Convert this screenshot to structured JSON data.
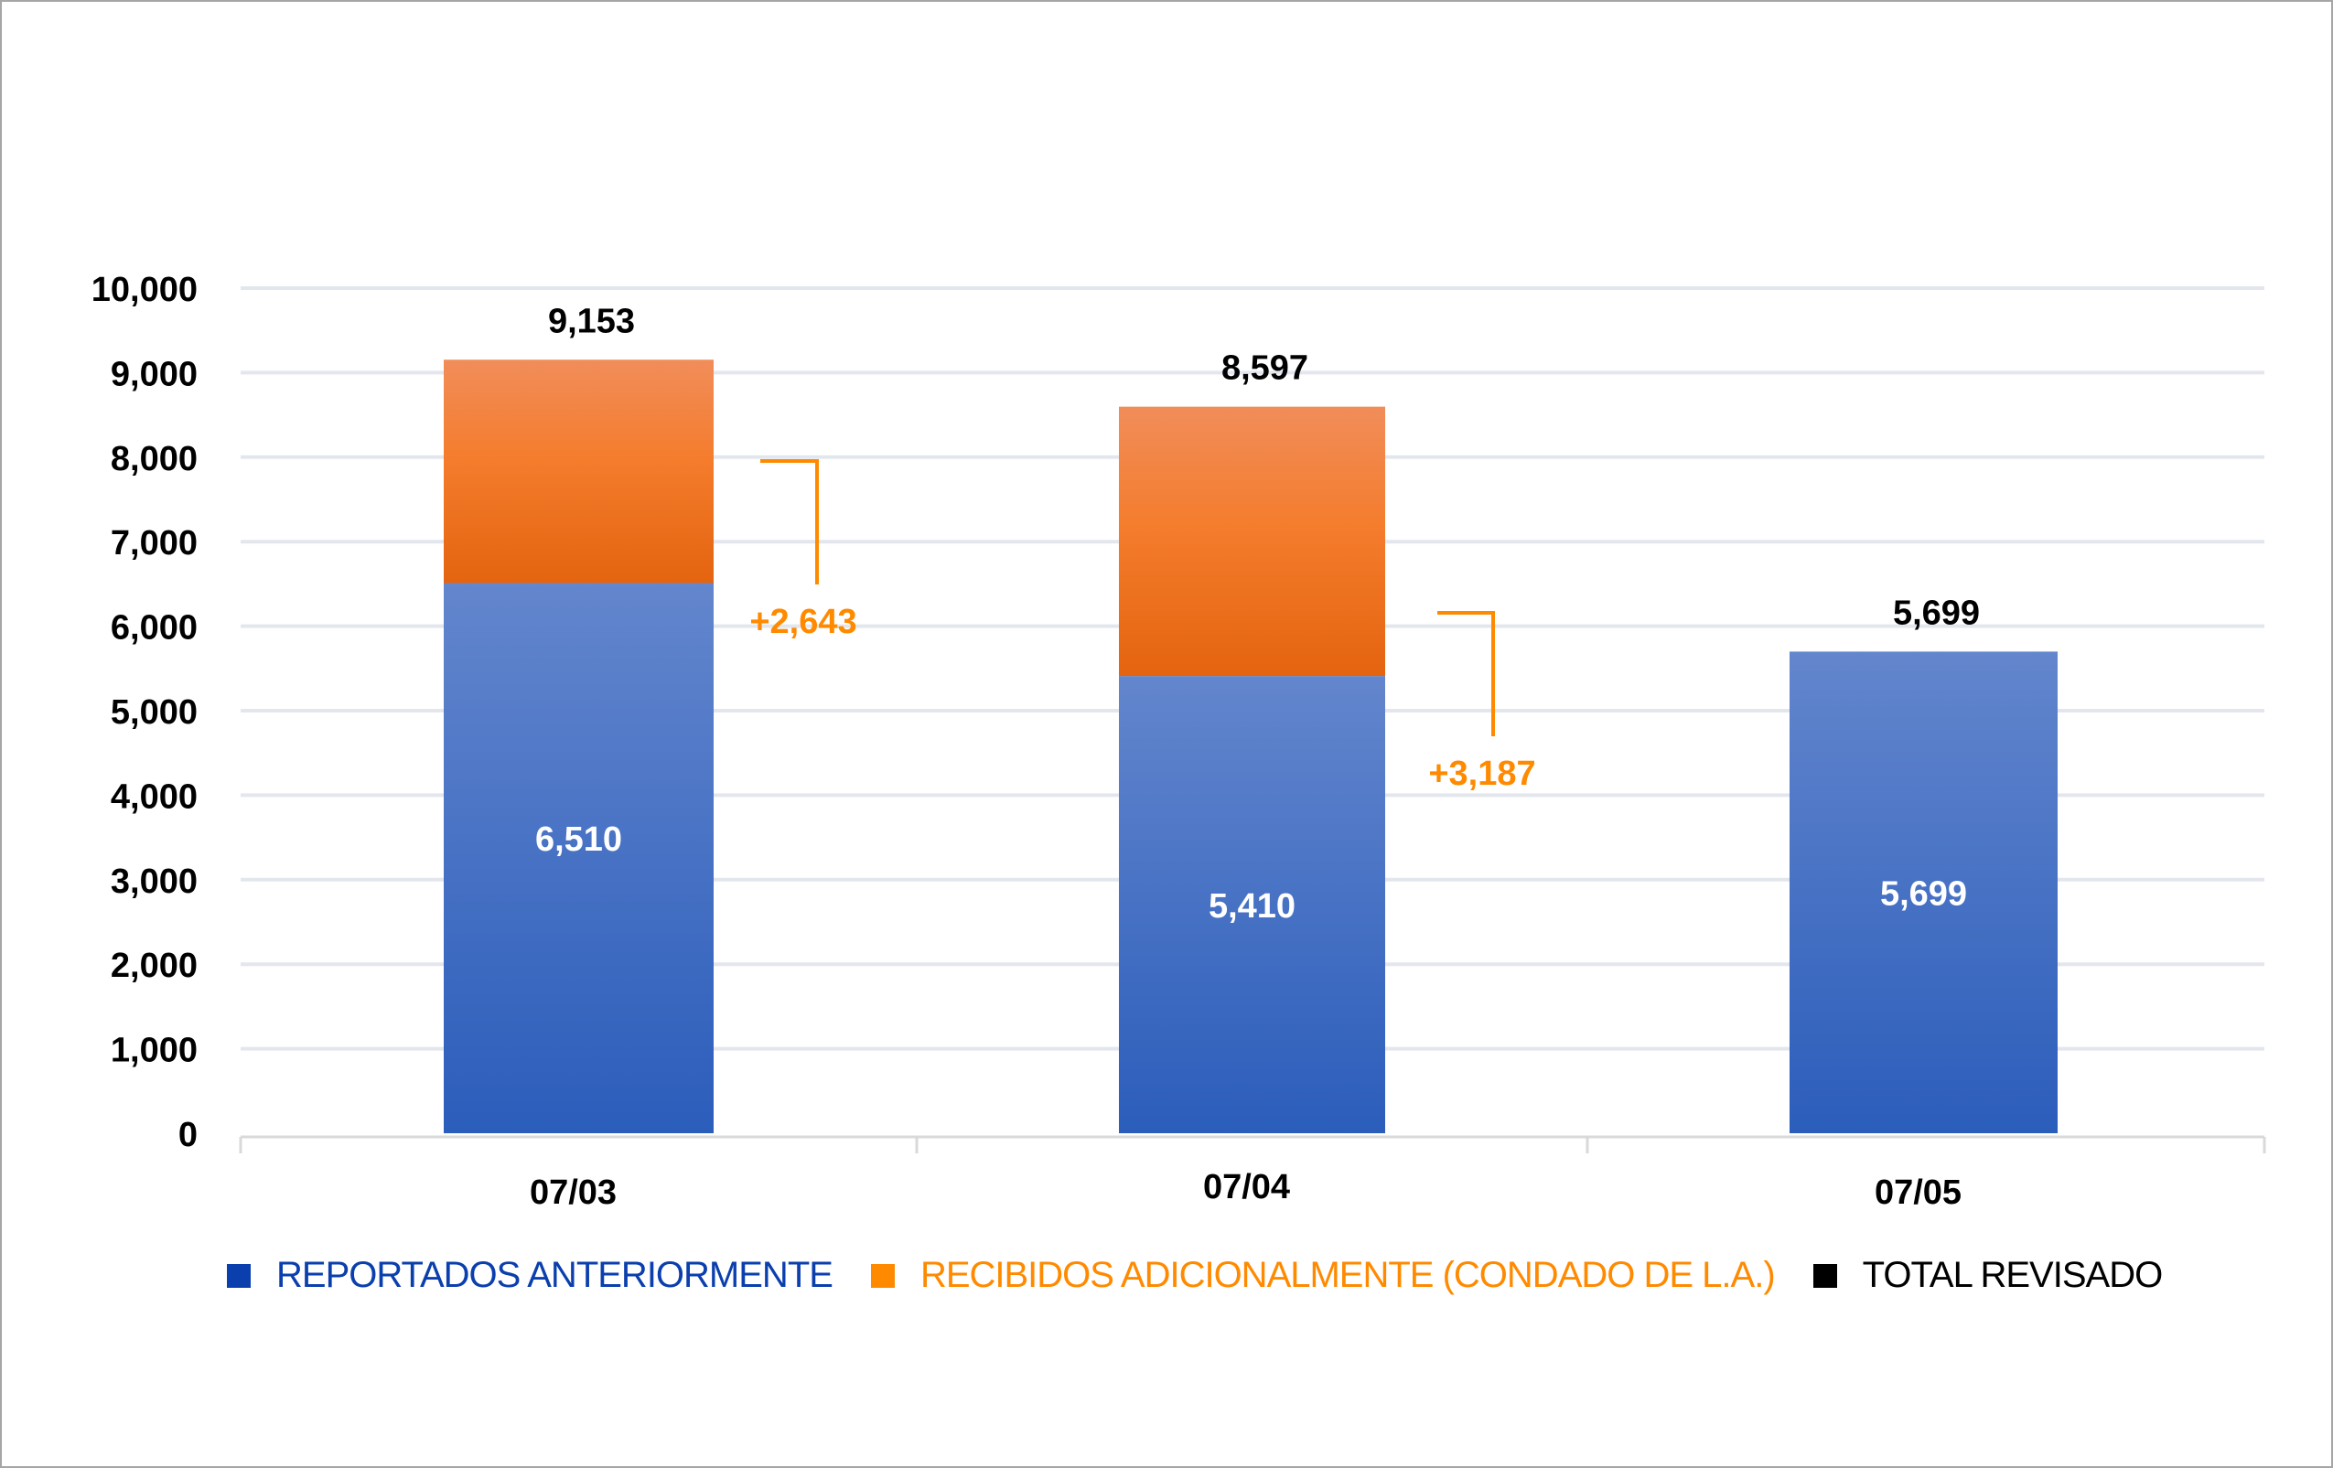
{
  "chart_data": {
    "type": "bar",
    "stacked": true,
    "categories": [
      "07/03",
      "07/04",
      "07/05"
    ],
    "series": [
      {
        "name": "REPORTADOS ANTERIORMENTE",
        "values": [
          6510,
          5410,
          5699
        ],
        "labels": [
          "6,510",
          "5,410",
          "5,699"
        ],
        "color": "#3a68c4"
      },
      {
        "name": "RECIBIDOS ADICIONALMENTE (CONDADO DE L.A.)",
        "values": [
          2643,
          3187,
          0
        ],
        "color": "#f07a23"
      }
    ],
    "totals": {
      "name": "TOTAL REVISADO",
      "values": [
        9153,
        8597,
        5699
      ],
      "labels": [
        "9,153",
        "8,597",
        "5,699"
      ],
      "color": "#000000"
    },
    "annotations": [
      "+2,643",
      "+3,187",
      ""
    ],
    "ylim": [
      0,
      10000
    ],
    "yticks": [
      "0",
      "1,000",
      "2,000",
      "3,000",
      "4,000",
      "5,000",
      "6,000",
      "7,000",
      "8,000",
      "9,000",
      "10,000"
    ],
    "grid": true,
    "legend_position": "bottom",
    "colors": {
      "legend_blue": "#0a3fad",
      "legend_orange": "#ff8a00",
      "annotation_orange": "#ff8a00",
      "grid": "#e3e7ed"
    }
  }
}
